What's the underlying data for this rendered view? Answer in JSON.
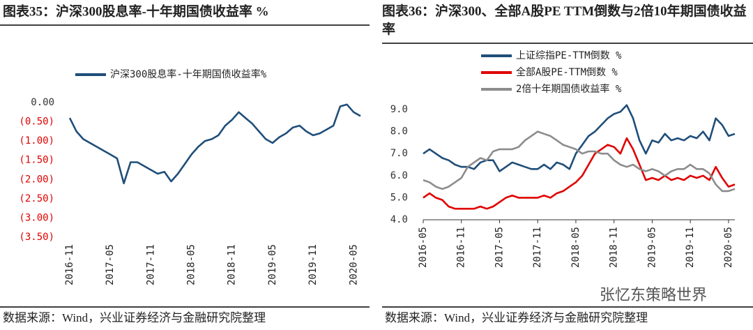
{
  "chart_data": [
    {
      "type": "line",
      "title": "图表35：沪深300股息率-十年期国债收益率 %",
      "source": "数据来源：Wind，兴业证券经济与金融研究院整理",
      "x": [
        "2016-11",
        "2016-12",
        "2017-01",
        "2017-02",
        "2017-03",
        "2017-04",
        "2017-05",
        "2017-06",
        "2017-07",
        "2017-08",
        "2017-09",
        "2017-10",
        "2017-11",
        "2017-12",
        "2018-01",
        "2018-02",
        "2018-03",
        "2018-04",
        "2018-05",
        "2018-06",
        "2018-07",
        "2018-08",
        "2018-09",
        "2018-10",
        "2018-11",
        "2018-12",
        "2019-01",
        "2019-02",
        "2019-03",
        "2019-04",
        "2019-05",
        "2019-06",
        "2019-07",
        "2019-08",
        "2019-09",
        "2019-10",
        "2019-11",
        "2019-12",
        "2020-01",
        "2020-02",
        "2020-03",
        "2020-04",
        "2020-05",
        "2020-06"
      ],
      "series": [
        {
          "name": "沪深300股息率-十年期国债收益率%",
          "color": "#1f4e79",
          "values": [
            -0.4,
            -0.75,
            -0.95,
            -1.05,
            -1.15,
            -1.25,
            -1.35,
            -1.45,
            -2.1,
            -1.55,
            -1.55,
            -1.65,
            -1.75,
            -1.85,
            -1.8,
            -2.05,
            -1.85,
            -1.6,
            -1.35,
            -1.15,
            -1.0,
            -0.95,
            -0.85,
            -0.6,
            -0.45,
            -0.25,
            -0.4,
            -0.55,
            -0.75,
            -0.95,
            -1.05,
            -0.9,
            -0.8,
            -0.65,
            -0.6,
            -0.75,
            -0.85,
            -0.8,
            -0.7,
            -0.6,
            -0.1,
            -0.05,
            -0.25,
            -0.35
          ]
        }
      ],
      "xlim": [
        "2016-11",
        "2020-06"
      ],
      "xticks": [
        "2016-11",
        "2017-05",
        "2017-11",
        "2018-05",
        "2018-11",
        "2019-05",
        "2019-11",
        "2020-05"
      ],
      "ylim": [
        -3.5,
        0
      ],
      "yticks": [
        {
          "value": 0,
          "label": "0.00"
        },
        {
          "value": -0.5,
          "label": "(0.50)"
        },
        {
          "value": -1,
          "label": "(1.00)"
        },
        {
          "value": -1.5,
          "label": "(1.50)"
        },
        {
          "value": -2,
          "label": "(2.00)"
        },
        {
          "value": -2.5,
          "label": "(2.50)"
        },
        {
          "value": -3,
          "label": "(3.00)"
        },
        {
          "value": -3.5,
          "label": "(3.50)"
        }
      ],
      "tick_color": "#333333",
      "negative_tick_color": "#e00000",
      "axis_line": false
    },
    {
      "type": "line",
      "title": "图表36：沪深300、全部A股PE TTM倒数与2倍10年期国债收益率",
      "source": "数据来源：Wind，兴业证券经济与金融研究院整理",
      "watermark": "张忆东策略世界",
      "x": [
        "2016-05",
        "2016-06",
        "2016-07",
        "2016-08",
        "2016-09",
        "2016-10",
        "2016-11",
        "2016-12",
        "2017-01",
        "2017-02",
        "2017-03",
        "2017-04",
        "2017-05",
        "2017-06",
        "2017-07",
        "2017-08",
        "2017-09",
        "2017-10",
        "2017-11",
        "2017-12",
        "2018-01",
        "2018-02",
        "2018-03",
        "2018-04",
        "2018-05",
        "2018-06",
        "2018-07",
        "2018-08",
        "2018-09",
        "2018-10",
        "2018-11",
        "2018-12",
        "2019-01",
        "2019-02",
        "2019-03",
        "2019-04",
        "2019-05",
        "2019-06",
        "2019-07",
        "2019-08",
        "2019-09",
        "2019-10",
        "2019-11",
        "2019-12",
        "2020-01",
        "2020-02",
        "2020-03",
        "2020-04",
        "2020-05",
        "2020-06"
      ],
      "series": [
        {
          "name": "上证综指PE-TTM倒数 %",
          "color": "#1f4e79",
          "values": [
            7.0,
            7.2,
            7.0,
            6.8,
            6.7,
            6.5,
            6.4,
            6.4,
            6.3,
            6.6,
            6.7,
            6.7,
            6.2,
            6.4,
            6.6,
            6.5,
            6.4,
            6.3,
            6.3,
            6.5,
            6.3,
            6.6,
            6.5,
            6.3,
            7.0,
            7.4,
            7.8,
            8.0,
            8.3,
            8.6,
            8.8,
            8.9,
            9.2,
            8.6,
            7.6,
            7.0,
            7.6,
            7.5,
            7.9,
            7.6,
            7.7,
            7.6,
            7.8,
            7.7,
            8.0,
            7.6,
            8.6,
            8.3,
            7.8,
            7.9
          ]
        },
        {
          "name": "全部A股PE-TTM倒数 %",
          "color": "#e00000",
          "values": [
            5.0,
            5.2,
            5.0,
            4.9,
            4.6,
            4.5,
            4.5,
            4.5,
            4.5,
            4.6,
            4.5,
            4.6,
            4.8,
            5.0,
            5.1,
            5.0,
            5.0,
            5.0,
            5.0,
            5.1,
            5.0,
            5.2,
            5.3,
            5.5,
            5.7,
            6.0,
            6.5,
            7.0,
            7.2,
            7.4,
            7.3,
            7.0,
            7.7,
            7.2,
            6.5,
            5.8,
            5.9,
            5.8,
            6.0,
            5.8,
            5.9,
            5.8,
            6.0,
            5.9,
            6.0,
            5.8,
            6.4,
            5.9,
            5.5,
            5.6
          ]
        },
        {
          "name": "2倍十年期国债收益率 %",
          "color": "#8c8c8c",
          "values": [
            5.8,
            5.7,
            5.5,
            5.4,
            5.5,
            5.7,
            5.9,
            6.4,
            6.6,
            6.8,
            6.7,
            7.1,
            7.2,
            7.2,
            7.2,
            7.3,
            7.6,
            7.8,
            8.0,
            7.9,
            7.8,
            7.6,
            7.4,
            7.3,
            7.2,
            7.0,
            7.1,
            7.1,
            7.0,
            7.0,
            6.7,
            6.5,
            6.4,
            6.5,
            6.3,
            6.2,
            6.3,
            6.2,
            6.0,
            6.2,
            6.3,
            6.3,
            6.5,
            6.3,
            6.3,
            6.1,
            5.6,
            5.3,
            5.3,
            5.4
          ]
        }
      ],
      "xlim": [
        "2016-05",
        "2020-06"
      ],
      "xticks": [
        "2016-05",
        "2016-11",
        "2017-05",
        "2017-11",
        "2018-05",
        "2018-11",
        "2019-05",
        "2019-11",
        "2020-05"
      ],
      "ylim": [
        4,
        9
      ],
      "yticks": [
        {
          "value": 4,
          "label": "4.0"
        },
        {
          "value": 5,
          "label": "5.0"
        },
        {
          "value": 6,
          "label": "6.0"
        },
        {
          "value": 7,
          "label": "7.0"
        },
        {
          "value": 8,
          "label": "8.0"
        },
        {
          "value": 9,
          "label": "9.0"
        }
      ],
      "tick_color": "#333333",
      "negative_tick_color": "#e00000",
      "axis_line": true
    }
  ]
}
